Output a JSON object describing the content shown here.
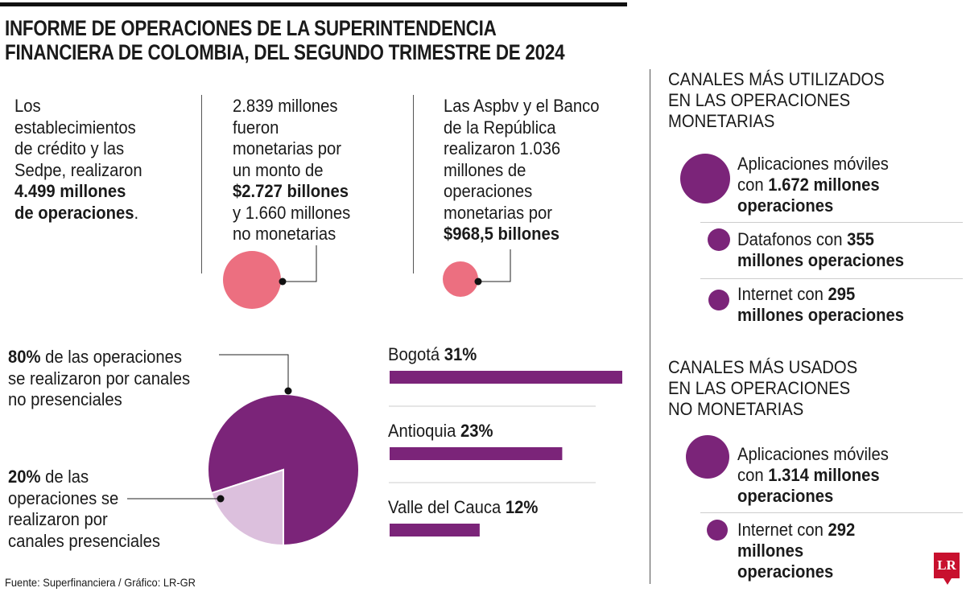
{
  "title": [
    "INFORME DE OPERACIONES DE LA SUPERINTENDENCIA",
    "FINANCIERA DE COLOMBIA, DEL SEGUNDO TRIMESTRE DE 2024"
  ],
  "stats": [
    {
      "lines": [
        [
          "Los",
          ""
        ],
        [
          "establecimientos",
          ""
        ],
        [
          "de crédito y las",
          ""
        ],
        [
          "Sedpe, realizaron",
          ""
        ],
        [
          "",
          "4.499 millones"
        ],
        [
          "",
          "de operaciones",
          "."
        ]
      ]
    },
    {
      "lines": [
        [
          "2.839 millones",
          ""
        ],
        [
          "fueron",
          ""
        ],
        [
          "monetarias por",
          ""
        ],
        [
          "un monto de",
          ""
        ],
        [
          "",
          "$2.727 billones"
        ],
        [
          "y 1.660 millones",
          ""
        ],
        [
          "no monetarias",
          ""
        ]
      ]
    },
    {
      "lines": [
        [
          "Las Aspbv y el Banco",
          ""
        ],
        [
          "de la República",
          ""
        ],
        [
          "realizaron 1.036",
          ""
        ],
        [
          "millones de",
          ""
        ],
        [
          "operaciones",
          ""
        ],
        [
          "monetarias por",
          ""
        ],
        [
          "",
          "$968,5 billones"
        ]
      ]
    }
  ],
  "colors": {
    "purple": "#7b2479",
    "pink": "#ec6f80",
    "lavender": "#dcc0dd",
    "logo_red": "#c8102e"
  },
  "chart_data": [
    {
      "type": "pie",
      "slices": [
        {
          "label": "de las operaciones se realizaron por canales no presenciales",
          "bold": "80%",
          "value": 80,
          "lines": [
            "de las operaciones",
            "se realizaron por canales",
            "no presenciales"
          ]
        },
        {
          "label": "de las operaciones se realizaron por canales presenciales",
          "bold": "20%",
          "value": 20,
          "lines": [
            "de las",
            "operaciones se",
            "realizaron por",
            "canales presenciales"
          ]
        }
      ]
    },
    {
      "type": "bar",
      "orientation": "horizontal",
      "categories": [
        "Bogotá",
        "Antioquia",
        "Valle del Cauca"
      ],
      "values": [
        31,
        23,
        12
      ],
      "value_labels": [
        "31%",
        "23%",
        "12%"
      ]
    }
  ],
  "monetary": {
    "header": [
      "CANALES MÁS UTILIZADOS",
      "EN LAS OPERACIONES",
      "MONETARIAS"
    ],
    "items": [
      {
        "lines": [
          [
            "Aplicaciones móviles",
            ""
          ],
          [
            "con ",
            "1.672 millones"
          ],
          [
            "",
            "operaciones"
          ]
        ],
        "value": 1672
      },
      {
        "lines": [
          [
            "Datafonos con ",
            "355"
          ],
          [
            "",
            "millones operaciones"
          ]
        ],
        "value": 355
      },
      {
        "lines": [
          [
            "Internet con ",
            "295"
          ],
          [
            "",
            "millones operaciones"
          ]
        ],
        "value": 295
      }
    ]
  },
  "nonmonetary": {
    "header": [
      "CANALES MÁS USADOS",
      "EN LAS OPERACIONES",
      "NO MONETARIAS"
    ],
    "items": [
      {
        "lines": [
          [
            "Aplicaciones móviles",
            ""
          ],
          [
            "con ",
            "1.314 millones"
          ],
          [
            "",
            "operaciones"
          ]
        ],
        "value": 1314
      },
      {
        "lines": [
          [
            "Internet con ",
            "292"
          ],
          [
            "",
            "millones"
          ],
          [
            "",
            "operaciones"
          ]
        ],
        "value": 292
      }
    ]
  },
  "footer": "Fuente: Superfinanciera / Gráfico: LR-GR",
  "logo": "LR"
}
